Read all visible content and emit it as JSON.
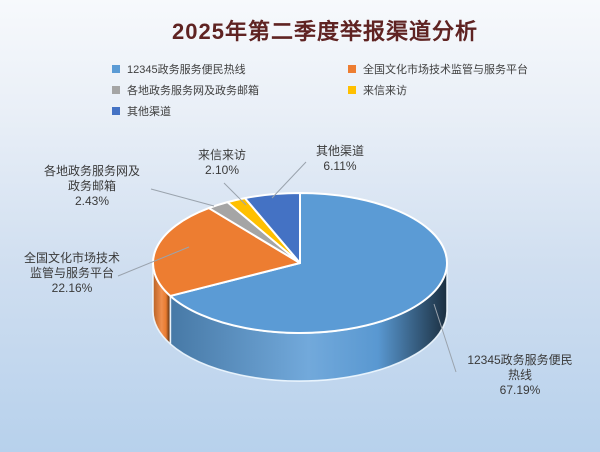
{
  "title": "2025年第二季度举报渠道分析",
  "colors": {
    "title": "#5f2322",
    "label_text": "#3a3a3a",
    "leader_line": "#9aa3ad",
    "background_top": "#f7f9fc",
    "background_bottom": "#b7d1ec"
  },
  "legend": {
    "position": "top",
    "items": [
      {
        "label": "12345政务服务便民热线",
        "color": "#5B9BD5"
      },
      {
        "label": "全国文化市场技术监管与服务平台",
        "color": "#ED7D31"
      },
      {
        "label": "各地政务服务网及政务邮箱",
        "color": "#A5A5A5"
      },
      {
        "label": "来信来访",
        "color": "#FFC000"
      },
      {
        "label": "其他渠道",
        "color": "#4472C4"
      }
    ]
  },
  "chart_data": {
    "type": "pie",
    "style": "3d",
    "title": "2025年第二季度举报渠道分析",
    "unit": "%",
    "start_angle_deg": 0,
    "direction": "clockwise",
    "legend_position": "top",
    "data_labels": "category name + percentage, outside with leader lines",
    "series": [
      {
        "name": "12345政务服务便民热线",
        "value": 67.19,
        "color": "#5B9BD5"
      },
      {
        "name": "全国文化市场技术监管与服务平台",
        "value": 22.16,
        "color": "#ED7D31"
      },
      {
        "name": "各地政务服务网及政务邮箱",
        "value": 2.43,
        "color": "#A5A5A5"
      },
      {
        "name": "来信来访",
        "value": 2.1,
        "color": "#FFC000"
      },
      {
        "name": "其他渠道",
        "value": 6.11,
        "color": "#4472C4"
      }
    ]
  },
  "callouts": {
    "gedi": {
      "line1": "各地政务服务网及",
      "line2": "政务邮箱",
      "pct": "2.43%"
    },
    "laixin": {
      "line1": "来信来访",
      "pct": "2.10%"
    },
    "qita": {
      "line1": "其他渠道",
      "pct": "6.11%"
    },
    "quanguo": {
      "line1": "全国文化市场技术",
      "line2": "监管与服务平台",
      "pct": "22.16%"
    },
    "hotline": {
      "line1": "12345政务服务便民",
      "line2": "热线",
      "pct": "67.19%"
    }
  }
}
